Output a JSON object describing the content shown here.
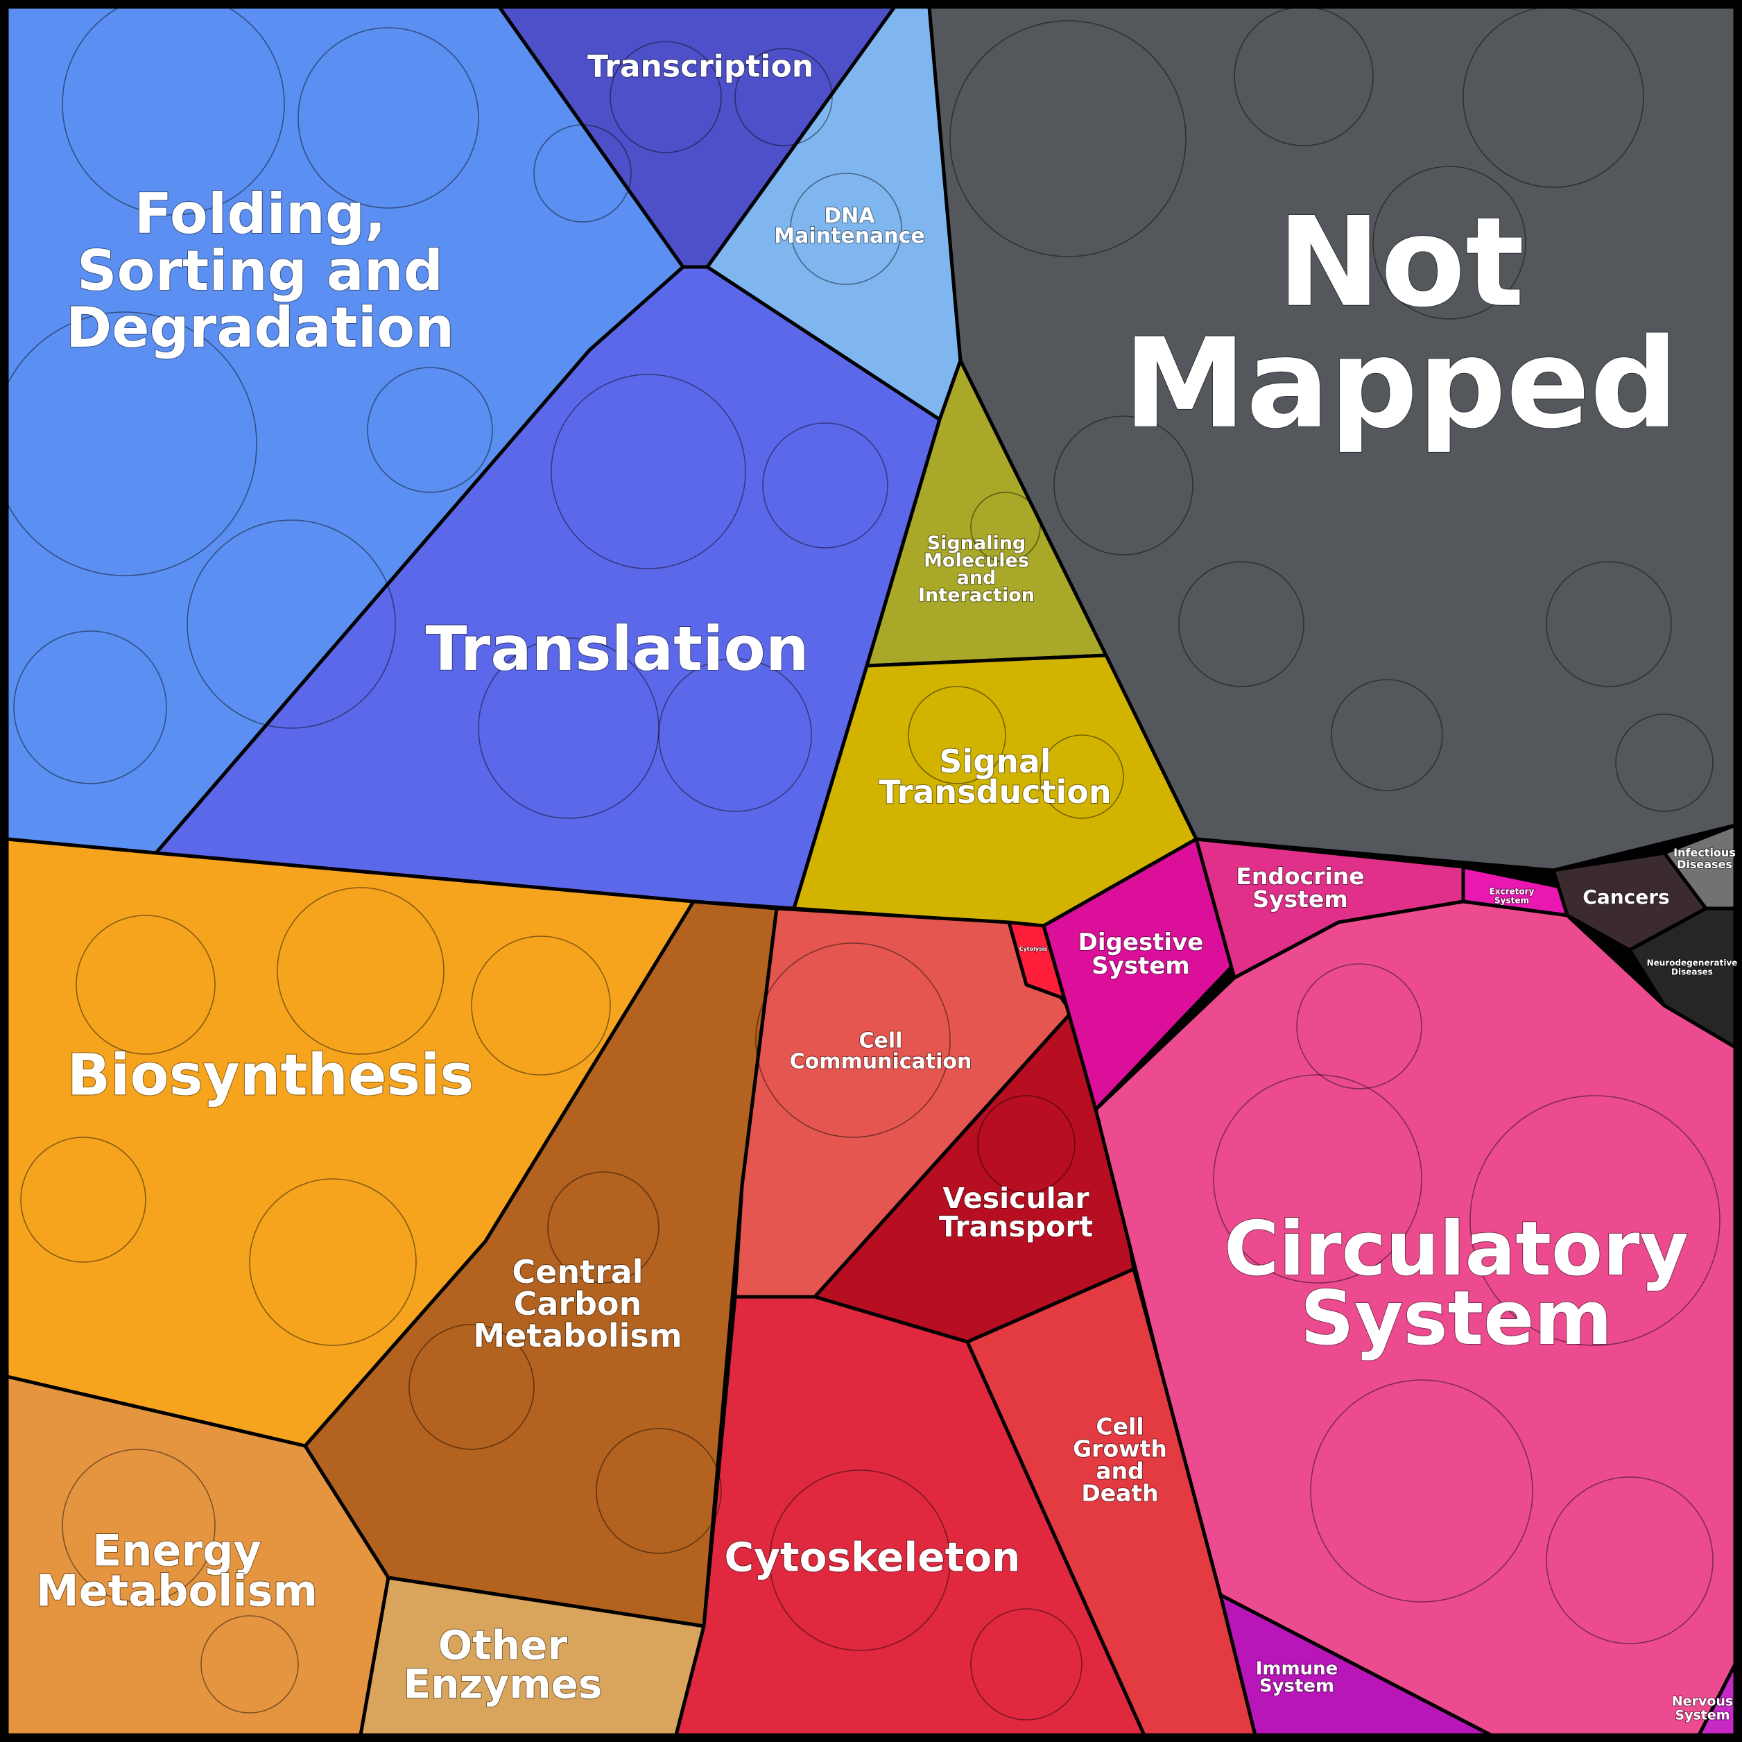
{
  "categories": [
    {
      "id": "folding",
      "label": [
        "Folding,",
        "Sorting and",
        "Degradation"
      ],
      "color": "#5b8ff2"
    },
    {
      "id": "transcription",
      "label": [
        "Transcription"
      ],
      "color": "#4d50c8"
    },
    {
      "id": "dna",
      "label": [
        "DNA",
        "Maintenance"
      ],
      "color": "#7fb6f0"
    },
    {
      "id": "translation",
      "label": [
        "Translation"
      ],
      "color": "#5c68ea"
    },
    {
      "id": "notmapped",
      "label": [
        "Not",
        "Mapped"
      ],
      "color": "#54585d"
    },
    {
      "id": "signaling",
      "label": [
        "Signaling",
        "Molecules",
        "and",
        "Interaction"
      ],
      "color": "#a9a828"
    },
    {
      "id": "signal",
      "label": [
        "Signal",
        "Transduction"
      ],
      "color": "#d1b300"
    },
    {
      "id": "biosynthesis",
      "label": [
        "Biosynthesis"
      ],
      "color": "#f6a41e"
    },
    {
      "id": "central",
      "label": [
        "Central",
        "Carbon",
        "Metabolism"
      ],
      "color": "#b3621f"
    },
    {
      "id": "energy",
      "label": [
        "Energy",
        "Metabolism"
      ],
      "color": "#e59540"
    },
    {
      "id": "other",
      "label": [
        "Other",
        "Enzymes"
      ],
      "color": "#d9a55c"
    },
    {
      "id": "cellcomm",
      "label": [
        "Cell",
        "Communication"
      ],
      "color": "#e65650"
    },
    {
      "id": "vesicular",
      "label": [
        "Vesicular",
        "Transport"
      ],
      "color": "#b80e22"
    },
    {
      "id": "cytoskeleton",
      "label": [
        "Cytoskeleton"
      ],
      "color": "#e0283f"
    },
    {
      "id": "cellgrowth",
      "label": [
        "Cell",
        "Growth",
        "and",
        "Death"
      ],
      "color": "#e43a42"
    },
    {
      "id": "digestive",
      "label": [
        "Digestive",
        "System"
      ],
      "color": "#db0f99"
    },
    {
      "id": "endocrine",
      "label": [
        "Endocrine",
        "System"
      ],
      "color": "#e1308a"
    },
    {
      "id": "circulatory",
      "label": [
        "Circulatory",
        "System"
      ],
      "color": "#ec4c8f"
    },
    {
      "id": "excretory",
      "label": [
        "Excretory",
        "System"
      ],
      "color": "#e818b0"
    },
    {
      "id": "cancers",
      "label": [
        "Cancers"
      ],
      "color": "#3c2b2e"
    },
    {
      "id": "infectious",
      "label": [
        "Infectious",
        "Diseases"
      ],
      "color": "#727272"
    },
    {
      "id": "neuro",
      "label": [
        "Neurodegenerative",
        "Diseases"
      ],
      "color": "#262626"
    },
    {
      "id": "immune",
      "label": [
        "Immune",
        "System"
      ],
      "color": "#b816b8"
    },
    {
      "id": "nervous",
      "label": [
        "Nervous",
        "System"
      ],
      "color": "#c729c4"
    },
    {
      "id": "cytolysis",
      "label": [
        "Cytolysis"
      ],
      "color": "#ff1f3a"
    }
  ]
}
